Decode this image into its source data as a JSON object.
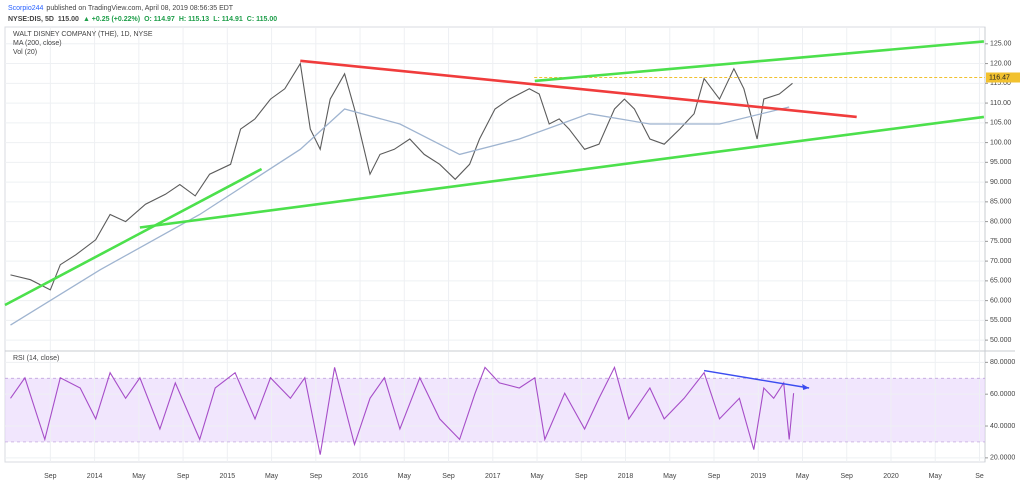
{
  "header": {
    "author": "Scorpio244",
    "published": "published on TradingView.com, April 08, 2019 08:56:35 EDT",
    "symbol": "NYSE:DIS, 5D",
    "price": "115.00",
    "change": "▲ +0.25 (+0.22%)",
    "ohlc": [
      "O: 114.97",
      "H: 115.13",
      "L: 114.91",
      "C: 115.00"
    ]
  },
  "chart_data": [
    {
      "type": "line",
      "title": "WALT DISNEY COMPANY (THE), 1D, NYSE",
      "volume_label": "Vol (20)",
      "xlim": [
        3.9,
        92.5
      ],
      "ylim": [
        47.5,
        129
      ],
      "yticks": [
        {
          "value": 50,
          "label": "50.000"
        },
        {
          "value": 55,
          "label": "55.000"
        },
        {
          "value": 60,
          "label": "60.000"
        },
        {
          "value": 65,
          "label": "65.000"
        },
        {
          "value": 70,
          "label": "70.000"
        },
        {
          "value": 75,
          "label": "75.000"
        },
        {
          "value": 80,
          "label": "80.000"
        },
        {
          "value": 85,
          "label": "85.000"
        },
        {
          "value": 90,
          "label": "90.000"
        },
        {
          "value": 95,
          "label": "95.000"
        },
        {
          "value": 100,
          "label": "100.00"
        },
        {
          "value": 105,
          "label": "105.00"
        },
        {
          "value": 110,
          "label": "110.00"
        },
        {
          "value": 115,
          "label": "115.00"
        },
        {
          "value": 120,
          "label": "120.00"
        },
        {
          "value": 125,
          "label": "125.00"
        }
      ],
      "hline": 116.47,
      "hline_color": "#f2c12e",
      "series": [
        {
          "color": "#5b5b5b",
          "x": [
            4.4,
            6.2,
            8,
            8.9,
            10.3,
            12.1,
            13.4,
            14.8,
            16.6,
            18.4,
            19.7,
            21.1,
            22.4,
            24.3,
            25.2,
            26.5,
            27.9,
            29.2,
            30.6,
            31.5,
            32.4,
            33.3,
            34.6,
            35.5,
            36.9,
            37.8,
            39.1,
            40.5,
            41.8,
            43.2,
            44.6,
            45.9,
            46.8,
            48.2,
            49.5,
            51.3,
            52.2,
            53.1,
            54,
            54.9,
            56.3,
            57.6,
            59,
            59.9,
            60.8,
            62.2,
            63.5,
            64.9,
            66.2,
            67.1,
            68.5,
            69.8,
            70.7,
            71.9,
            72.5,
            73.9,
            75.1
          ],
          "values": [
            66.5,
            65.3,
            62.7,
            69.1,
            71.6,
            75.4,
            81.8,
            80,
            84.4,
            86.9,
            89.4,
            86.5,
            92,
            94.5,
            103.4,
            106,
            111,
            113.6,
            120,
            103.4,
            98.3,
            111,
            117.4,
            108.5,
            92,
            97,
            98.3,
            100.9,
            97,
            94.5,
            90.7,
            94.5,
            100.9,
            108.5,
            111,
            113.6,
            112.3,
            104.7,
            106,
            103.4,
            98.3,
            99.6,
            108.5,
            111,
            108.5,
            100.9,
            99.6,
            103.4,
            107.3,
            116.2,
            111,
            118.7,
            113.6,
            100.9,
            111,
            112.3,
            115
          ]
        },
        {
          "name": "MA (200, close)",
          "color": "#9fb4d0",
          "x": [
            4.4,
            12.5,
            21.5,
            30.6,
            34.6,
            39.6,
            45,
            50.4,
            56.7,
            62.2,
            68.5,
            74.8
          ],
          "values": [
            53.8,
            67.8,
            81.8,
            98.3,
            108.5,
            104.7,
            97,
            100.9,
            107.3,
            104.7,
            104.7,
            109
          ]
        }
      ],
      "trendlines": [
        {
          "color": "#4ce04c",
          "x": [
            3.9,
            27.1
          ],
          "values": [
            58.9,
            93.3
          ]
        },
        {
          "color": "#4ce04c",
          "x": [
            16.1,
            92.4
          ],
          "values": [
            78.5,
            106.5
          ]
        },
        {
          "color": "#4ce04c",
          "x": [
            51.8,
            92.4
          ],
          "values": [
            115.6,
            125.6
          ]
        },
        {
          "color": "#f03c3c",
          "x": [
            30.6,
            80.9
          ],
          "values": [
            120.7,
            106.5
          ]
        }
      ]
    },
    {
      "type": "line",
      "title": "RSI (14, close)",
      "xlim": [
        3.9,
        92.5
      ],
      "ylim": [
        17.4,
        86.5
      ],
      "band": [
        30,
        70
      ],
      "band_color": "#e8d6fb",
      "yticks": [
        {
          "value": 20,
          "label": "20.0000"
        },
        {
          "value": 40,
          "label": "40.0000"
        },
        {
          "value": 60,
          "label": "60.0000"
        },
        {
          "value": 80,
          "label": "80.0000"
        }
      ],
      "xticks": [
        {
          "value": 8,
          "label": "Sep"
        },
        {
          "value": 12,
          "label": "2014"
        },
        {
          "value": 16,
          "label": "May"
        },
        {
          "value": 20,
          "label": "Sep"
        },
        {
          "value": 24,
          "label": "2015"
        },
        {
          "value": 28,
          "label": "May"
        },
        {
          "value": 32,
          "label": "Sep"
        },
        {
          "value": 36,
          "label": "2016"
        },
        {
          "value": 40,
          "label": "May"
        },
        {
          "value": 44,
          "label": "Sep"
        },
        {
          "value": 48,
          "label": "2017"
        },
        {
          "value": 52,
          "label": "May"
        },
        {
          "value": 56,
          "label": "Sep"
        },
        {
          "value": 60,
          "label": "2018"
        },
        {
          "value": 64,
          "label": "May"
        },
        {
          "value": 68,
          "label": "Sep"
        },
        {
          "value": 72,
          "label": "2019"
        },
        {
          "value": 76,
          "label": "May"
        },
        {
          "value": 80,
          "label": "Sep"
        },
        {
          "value": 84,
          "label": "2020"
        },
        {
          "value": 88,
          "label": "May"
        },
        {
          "value": 92,
          "label": "Se"
        }
      ],
      "series": [
        {
          "color": "#a64dc8",
          "x": [
            4.4,
            5.7,
            7.5,
            8.9,
            10.7,
            12.1,
            13.4,
            14.8,
            16.1,
            17.9,
            19.3,
            21.5,
            22.9,
            24.7,
            26.5,
            27.9,
            29.7,
            31,
            32.4,
            33.7,
            35.5,
            36.9,
            38.2,
            39.6,
            41.4,
            43.2,
            45,
            46.4,
            47.3,
            48.6,
            50.4,
            51.8,
            52.7,
            54.5,
            56.3,
            57.6,
            59,
            60.3,
            62.2,
            63.5,
            65.3,
            67.1,
            68.5,
            70.3,
            71.6,
            72.5,
            73.4,
            74.3,
            74.8,
            75.2
          ],
          "values": [
            57.4,
            70.3,
            31.6,
            70.3,
            63.9,
            44.5,
            73.5,
            57.4,
            70.3,
            38.1,
            67.1,
            31.6,
            63.9,
            73.5,
            44.5,
            70.3,
            57.4,
            70.3,
            22,
            76.8,
            28.4,
            57.4,
            70.3,
            38.1,
            70.3,
            44.5,
            31.6,
            60.6,
            76.8,
            67.1,
            63.9,
            70.3,
            31.6,
            60.6,
            38.1,
            57.4,
            76.8,
            44.5,
            63.9,
            44.5,
            57.4,
            73.5,
            44.5,
            57.4,
            25.2,
            63.9,
            57.4,
            67.1,
            31.6,
            60.6
          ]
        }
      ],
      "trendlines": [
        {
          "color": "#3b4cf0",
          "x": [
            67.1,
            76.6
          ],
          "values": [
            74.8,
            63.9
          ]
        }
      ]
    }
  ]
}
